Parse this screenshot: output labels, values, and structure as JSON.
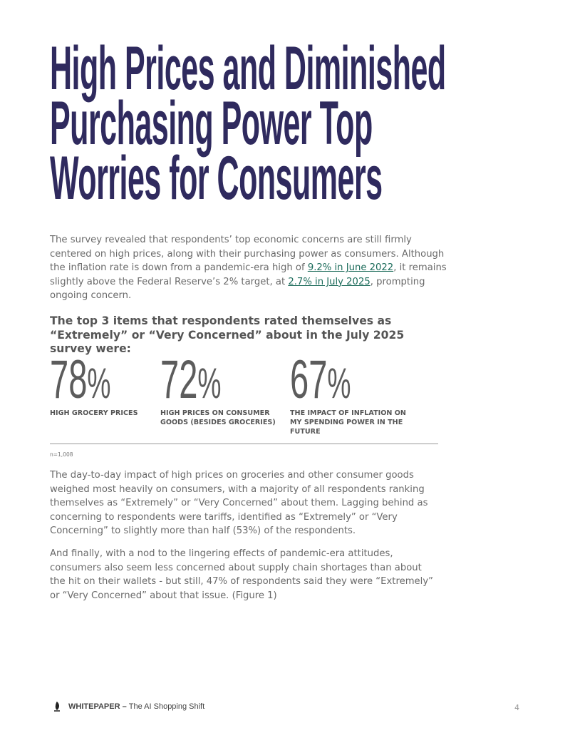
{
  "header": {
    "title_lines": [
      "High Prices and Diminished",
      "Purchasing Power Top",
      "Worries for Consumers"
    ]
  },
  "intro": {
    "parts": [
      {
        "text": "The survey revealed that respondents’ top economic concerns are still firmly centered on high prices, along with their purchasing power as consumers. Although the inflation rate is down from a pandemic-era high of "
      },
      {
        "link": "9.2% in June 2022"
      },
      {
        "text": ", it remains slightly above the Federal Reserve’s 2% target, at "
      },
      {
        "link": "2.7% in July 2025"
      },
      {
        "text": ", prompting ongoing concern."
      }
    ]
  },
  "subheading": "The top 3 items that respondents rated themselves as “Extremely” or “Very Concerned” about in the July 2025 survey were:",
  "stats": [
    {
      "value": "78",
      "unit": "%",
      "label": "HIGH GROCERY PRICES"
    },
    {
      "value": "72",
      "unit": "%",
      "label": "HIGH PRICES ON CONSUMER GOODS (BESIDES GROCERIES)"
    },
    {
      "value": "67",
      "unit": "%",
      "label": "THE IMPACT OF INFLATION ON MY SPENDING POWER IN THE FUTURE"
    }
  ],
  "sample_note": "n=1,008",
  "paragraphs": [
    "The day-to-day impact of high prices on groceries and other consumer goods weighed most heavily on consumers, with a majority of all respondents ranking themselves as “Extremely” or “Very Concerned” about them. Lagging behind as concerning to respondents were tariffs, identified as “Extremely” or “Very Concerning” to slightly more than half (53%) of the respondents.",
    "And finally, with a nod to the lingering effects of pandemic-era attitudes, consumers also seem less concerned about supply chain shortages than about the hit on their wallets - but still, 47% of respondents said they were “Extremely” or “Very Concerned” about that issue. (Figure 1)"
  ],
  "footer": {
    "brand": "WHITEPAPER",
    "separator": " – ",
    "doc_title": "The AI Shopping Shift",
    "page": "4"
  }
}
